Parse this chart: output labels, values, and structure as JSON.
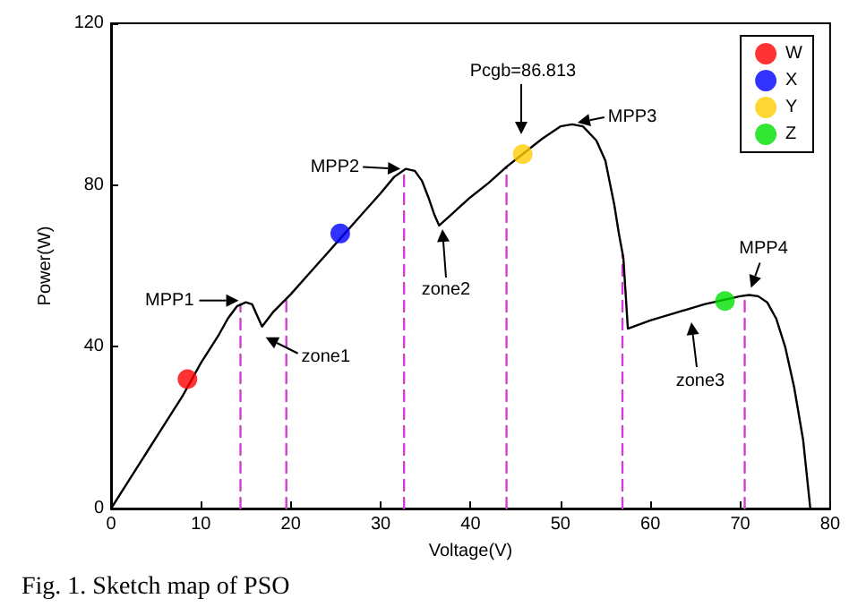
{
  "chart_data": {
    "type": "line",
    "xlabel": "Voltage(V)",
    "ylabel": "Power(W)",
    "xlim": [
      0,
      80
    ],
    "xticks": [
      0,
      10,
      20,
      30,
      40,
      50,
      60,
      70,
      80
    ],
    "ylim": [
      0,
      120
    ],
    "yticks": [
      0,
      40,
      80,
      120
    ],
    "grid": false,
    "legend": "top right",
    "series": [
      {
        "color": "#000000",
        "marker": "none",
        "line_style": "solid",
        "x": [
          0,
          2,
          4,
          6,
          8,
          10,
          12,
          13,
          14,
          15,
          15.7,
          16.2,
          16.8,
          18,
          20,
          22,
          24,
          26,
          28,
          30,
          31.5,
          32.8,
          33.8,
          34.6,
          35.3,
          36,
          36.5,
          38,
          40,
          42,
          44,
          46,
          48,
          50,
          51.3,
          52.5,
          54,
          55,
          56,
          56.5,
          57,
          57.5,
          60,
          63,
          66,
          68,
          70,
          71,
          72,
          73,
          74,
          75,
          76,
          77,
          77.8
        ],
        "values": [
          0,
          7,
          14,
          21,
          28,
          36,
          43,
          47,
          50,
          51,
          50.5,
          48,
          45,
          48.5,
          53,
          58,
          63,
          68,
          73,
          78,
          82,
          84,
          83.5,
          81,
          77,
          72.5,
          70,
          73,
          77,
          80.5,
          84.5,
          88,
          91.5,
          94.5,
          95,
          94.5,
          91,
          86,
          75,
          68,
          62,
          44.5,
          46.5,
          48.5,
          50.5,
          51.5,
          52.5,
          52.8,
          52.5,
          51,
          47,
          40,
          30,
          17,
          0
        ]
      },
      {
        "type": "line",
        "color": "#d040d0",
        "marker": "none",
        "line_style": "dashed",
        "x": [
          14.4,
          14.4
        ],
        "values": [
          0,
          50.5
        ]
      },
      {
        "type": "line",
        "color": "#d040d0",
        "marker": "none",
        "line_style": "dashed",
        "x": [
          19.5,
          19.5
        ],
        "values": [
          0,
          52
        ]
      },
      {
        "type": "line",
        "color": "#d040d0",
        "marker": "none",
        "line_style": "dashed",
        "x": [
          32.6,
          32.6
        ],
        "values": [
          0,
          84
        ]
      },
      {
        "type": "line",
        "color": "#d040d0",
        "marker": "none",
        "line_style": "dashed",
        "x": [
          44,
          44
        ],
        "values": [
          0,
          84.5
        ]
      },
      {
        "type": "line",
        "color": "#d040d0",
        "marker": "none",
        "line_style": "dashed",
        "x": [
          56.9,
          56.9
        ],
        "values": [
          0,
          63
        ]
      },
      {
        "type": "line",
        "color": "#d040d0",
        "marker": "none",
        "line_style": "dashed",
        "x": [
          70.5,
          70.5
        ],
        "values": [
          0,
          52.6
        ]
      },
      {
        "type": "scatter",
        "name": "W",
        "color": "#ff0000",
        "marker": "circle",
        "x": [
          8.5
        ],
        "values": [
          32
        ]
      },
      {
        "type": "scatter",
        "name": "X",
        "color": "#0000ff",
        "marker": "circle",
        "x": [
          25.5
        ],
        "values": [
          68
        ]
      },
      {
        "type": "scatter",
        "name": "Y",
        "color": "#ffcc00",
        "marker": "circle",
        "x": [
          45.8
        ],
        "values": [
          87.6
        ]
      },
      {
        "type": "scatter",
        "name": "Z",
        "color": "#00e000",
        "marker": "circle",
        "x": [
          68.3
        ],
        "values": [
          51.3
        ]
      }
    ],
    "annotations": [
      {
        "text": "MPP1",
        "x": 15,
        "y": 51
      },
      {
        "text": "zone1",
        "x": 16.8,
        "y": 45
      },
      {
        "text": "MPP2",
        "x": 32.8,
        "y": 84
      },
      "zone2",
      "Pcgb=86.813",
      {
        "text": "MPP3",
        "x": 51.3,
        "y": 95
      },
      "zone3",
      {
        "text": "MPP4",
        "x": 71,
        "y": 52.8
      },
      "Fig. 1. Sketch map of PSO"
    ]
  }
}
